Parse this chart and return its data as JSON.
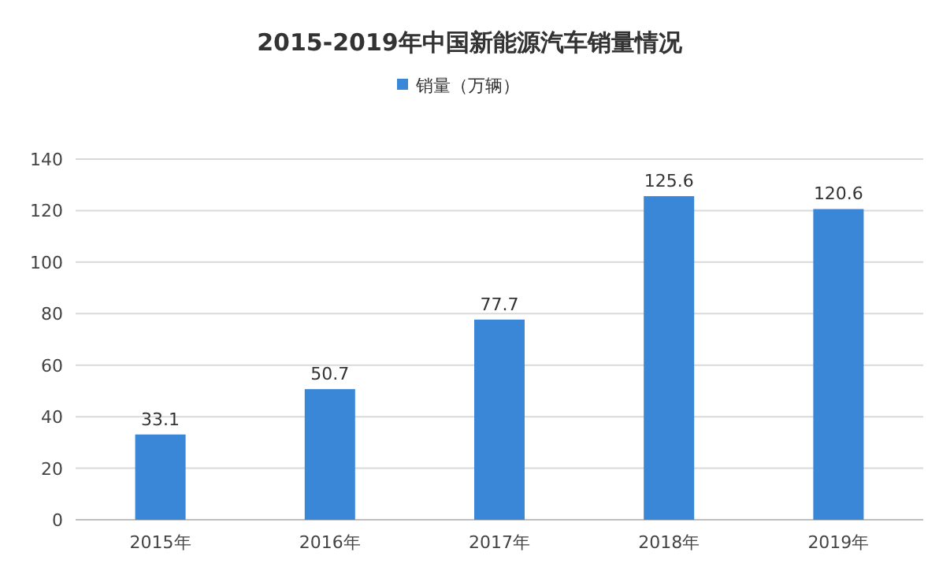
{
  "chart_data": {
    "type": "bar",
    "title": "2015-2019年中国新能源汽车销量情况",
    "categories": [
      "2015年",
      "2016年",
      "2017年",
      "2018年",
      "2019年"
    ],
    "series": [
      {
        "name": "销量（万辆）",
        "color": "#3a87d8",
        "values": [
          33.1,
          50.7,
          77.7,
          125.6,
          120.6
        ]
      }
    ],
    "ylim": [
      0,
      140
    ],
    "yticks": [
      0,
      20,
      40,
      60,
      80,
      100,
      120,
      140
    ],
    "grid": "y",
    "legend": "top",
    "data_labels": true
  }
}
